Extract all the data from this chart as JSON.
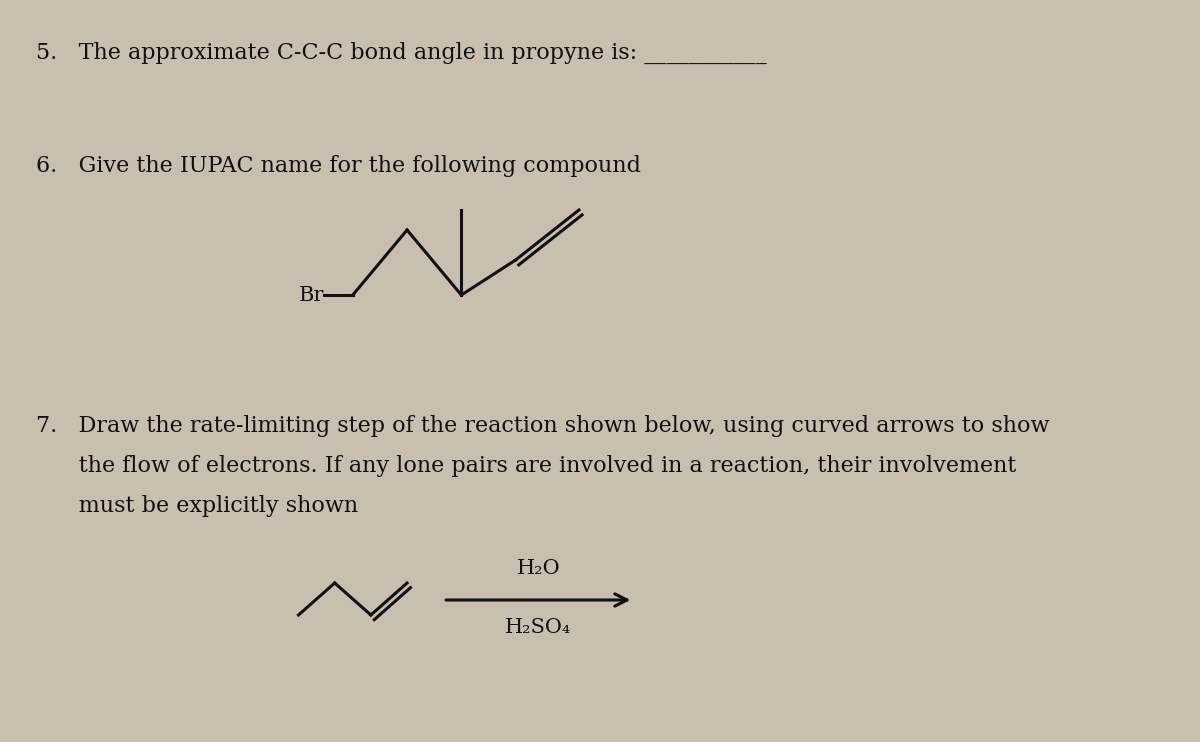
{
  "background_color": "#c8bfb0",
  "text_color": "#111111",
  "q5_text": "5.   The approximate C-C-C bond angle in propyne is: ___________",
  "q6_text": "6.   Give the IUPAC name for the following compound",
  "q7_line1": "7.   Draw the rate-limiting step of the reaction shown below, using curved arrows to show",
  "q7_line2": "      the flow of electrons. If any lone pairs are involved in a reaction, their involvement",
  "q7_line3": "      must be explicitly shown",
  "h2o_label": "H₂O",
  "h2so4_label": "H₂SO₄",
  "br_label": "Br",
  "font_size_main": 16,
  "font_size_chem": 15
}
